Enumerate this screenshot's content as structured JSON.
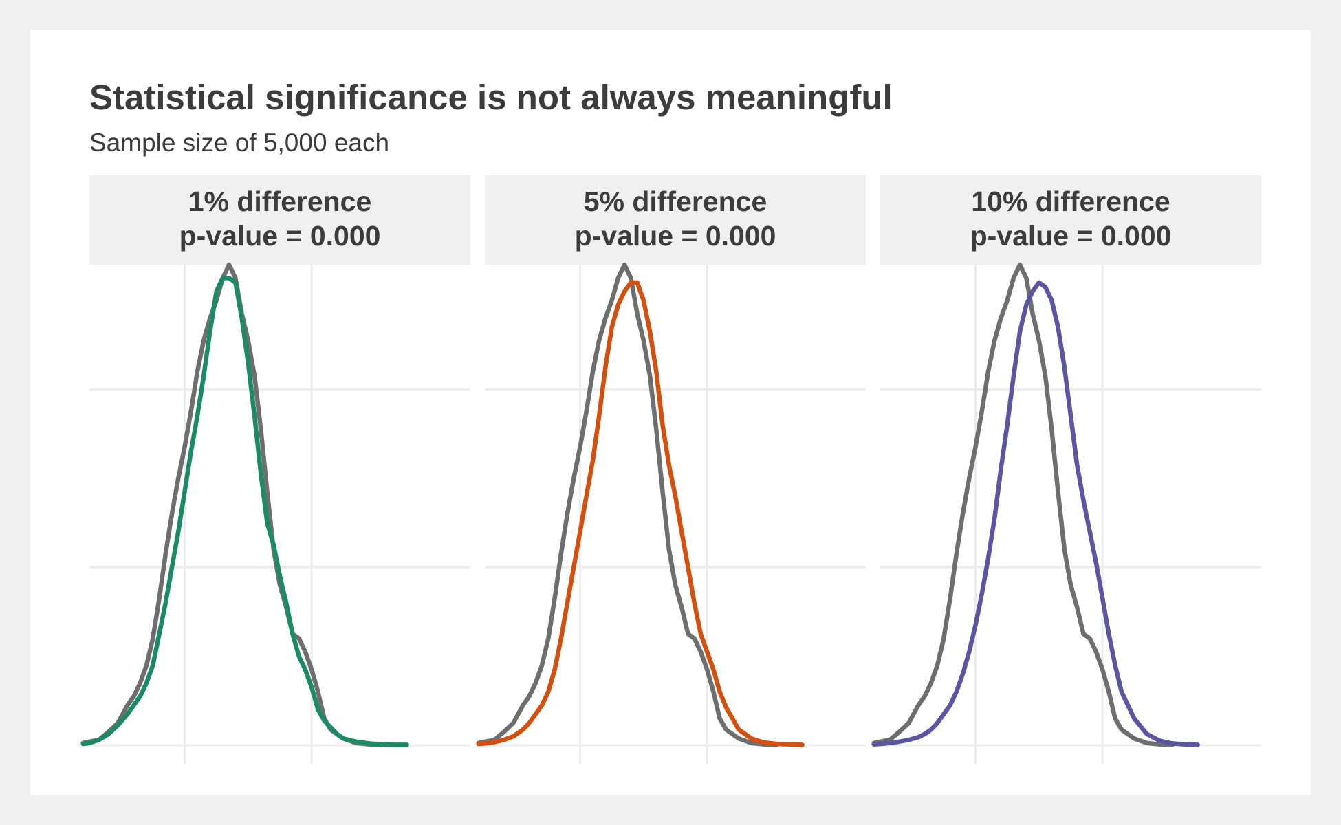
{
  "chart_data": {
    "type": "line",
    "title": "Statistical significance is not always meaningful",
    "subtitle": "Sample size of 5,000 each",
    "xlabel": "",
    "ylabel": "",
    "grid": true,
    "legend": "none",
    "xlim": [
      0,
      12
    ],
    "ylim": [
      0,
      1.08
    ],
    "x_gridlines": [
      3,
      7
    ],
    "y_gridlines": [
      0,
      0.4,
      0.8
    ],
    "baseline_color": "#6e6e6e",
    "panels": [
      {
        "title": "1% difference",
        "subtitle": "p-value = 0.000",
        "color": "#1b8a68",
        "series": [
          {
            "x": [
              -0.2,
              0.0,
              0.3,
              0.6,
              0.9,
              1.2,
              1.4,
              1.6,
              1.8,
              2.0,
              2.2,
              2.4,
              2.6,
              2.8,
              3.0,
              3.2,
              3.4,
              3.6,
              3.8,
              4.0,
              4.2,
              4.4,
              4.6,
              4.8,
              5.0,
              5.2,
              5.4,
              5.6,
              5.8,
              6.0,
              6.2,
              6.4,
              6.6,
              6.8,
              7.0,
              7.2,
              7.4,
              7.6,
              7.8,
              8.0,
              8.4,
              8.8,
              9.2
            ],
            "y": [
              0.005,
              0.008,
              0.012,
              0.03,
              0.05,
              0.09,
              0.11,
              0.14,
              0.18,
              0.24,
              0.33,
              0.43,
              0.52,
              0.6,
              0.67,
              0.75,
              0.84,
              0.91,
              0.96,
              1.0,
              1.05,
              1.08,
              1.05,
              0.97,
              0.91,
              0.83,
              0.71,
              0.57,
              0.44,
              0.36,
              0.31,
              0.25,
              0.24,
              0.21,
              0.17,
              0.12,
              0.06,
              0.035,
              0.025,
              0.015,
              0.005,
              0.002,
              0.001
            ]
          },
          {
            "x": [
              -0.2,
              0.0,
              0.3,
              0.6,
              0.9,
              1.2,
              1.4,
              1.6,
              1.8,
              2.0,
              2.2,
              2.4,
              2.6,
              2.8,
              3.0,
              3.2,
              3.4,
              3.6,
              3.8,
              4.0,
              4.2,
              4.4,
              4.6,
              4.8,
              5.0,
              5.2,
              5.4,
              5.6,
              5.8,
              6.0,
              6.2,
              6.4,
              6.6,
              6.8,
              7.0,
              7.2,
              7.4,
              7.6,
              7.8,
              8.0,
              8.4,
              8.8,
              9.2,
              9.6,
              10.0
            ],
            "y": [
              0.003,
              0.005,
              0.012,
              0.025,
              0.045,
              0.07,
              0.09,
              0.11,
              0.14,
              0.18,
              0.25,
              0.32,
              0.4,
              0.48,
              0.57,
              0.66,
              0.74,
              0.83,
              0.93,
              1.02,
              1.05,
              1.05,
              1.04,
              0.96,
              0.86,
              0.74,
              0.61,
              0.5,
              0.45,
              0.38,
              0.32,
              0.25,
              0.2,
              0.17,
              0.13,
              0.08,
              0.055,
              0.04,
              0.025,
              0.015,
              0.008,
              0.004,
              0.002,
              0.001,
              0.001
            ]
          }
        ]
      },
      {
        "title": "5% difference",
        "subtitle": "p-value = 0.000",
        "color": "#d4500f",
        "series": [
          {
            "x": [
              -0.2,
              0.0,
              0.3,
              0.6,
              0.9,
              1.2,
              1.4,
              1.6,
              1.8,
              2.0,
              2.2,
              2.4,
              2.6,
              2.8,
              3.0,
              3.2,
              3.4,
              3.6,
              3.8,
              4.0,
              4.2,
              4.4,
              4.6,
              4.8,
              5.0,
              5.2,
              5.4,
              5.6,
              5.8,
              6.0,
              6.2,
              6.4,
              6.6,
              6.8,
              7.0,
              7.2,
              7.4,
              7.6,
              7.8,
              8.0,
              8.4,
              8.8,
              9.2
            ],
            "y": [
              0.005,
              0.008,
              0.012,
              0.03,
              0.05,
              0.09,
              0.11,
              0.14,
              0.18,
              0.24,
              0.33,
              0.43,
              0.52,
              0.6,
              0.67,
              0.75,
              0.84,
              0.91,
              0.96,
              1.0,
              1.05,
              1.08,
              1.05,
              0.97,
              0.91,
              0.83,
              0.71,
              0.57,
              0.44,
              0.36,
              0.31,
              0.25,
              0.24,
              0.21,
              0.17,
              0.12,
              0.06,
              0.035,
              0.025,
              0.015,
              0.005,
              0.002,
              0.001
            ]
          },
          {
            "x": [
              -0.2,
              0.0,
              0.3,
              0.6,
              0.9,
              1.2,
              1.4,
              1.6,
              1.8,
              2.0,
              2.2,
              2.4,
              2.6,
              2.8,
              3.0,
              3.2,
              3.4,
              3.6,
              3.8,
              4.0,
              4.2,
              4.4,
              4.6,
              4.8,
              5.0,
              5.2,
              5.4,
              5.6,
              5.8,
              6.0,
              6.2,
              6.4,
              6.6,
              6.8,
              7.0,
              7.2,
              7.4,
              7.6,
              7.8,
              8.0,
              8.4,
              8.8,
              9.2,
              9.6,
              10.0
            ],
            "y": [
              0.003,
              0.004,
              0.007,
              0.012,
              0.02,
              0.035,
              0.05,
              0.07,
              0.09,
              0.12,
              0.17,
              0.24,
              0.32,
              0.4,
              0.48,
              0.56,
              0.64,
              0.74,
              0.85,
              0.94,
              0.99,
              1.02,
              1.04,
              1.04,
              1.0,
              0.93,
              0.84,
              0.72,
              0.63,
              0.56,
              0.48,
              0.4,
              0.32,
              0.25,
              0.21,
              0.17,
              0.12,
              0.085,
              0.06,
              0.035,
              0.015,
              0.006,
              0.003,
              0.002,
              0.001
            ]
          }
        ]
      },
      {
        "title": "10% difference",
        "subtitle": "p-value = 0.000",
        "color": "#5c55a2",
        "series": [
          {
            "x": [
              -0.2,
              0.0,
              0.3,
              0.6,
              0.9,
              1.2,
              1.4,
              1.6,
              1.8,
              2.0,
              2.2,
              2.4,
              2.6,
              2.8,
              3.0,
              3.2,
              3.4,
              3.6,
              3.8,
              4.0,
              4.2,
              4.4,
              4.6,
              4.8,
              5.0,
              5.2,
              5.4,
              5.6,
              5.8,
              6.0,
              6.2,
              6.4,
              6.6,
              6.8,
              7.0,
              7.2,
              7.4,
              7.6,
              7.8,
              8.0,
              8.4,
              8.8,
              9.2
            ],
            "y": [
              0.005,
              0.008,
              0.012,
              0.03,
              0.05,
              0.09,
              0.11,
              0.14,
              0.18,
              0.24,
              0.33,
              0.43,
              0.52,
              0.6,
              0.67,
              0.75,
              0.84,
              0.91,
              0.96,
              1.0,
              1.05,
              1.08,
              1.05,
              0.97,
              0.91,
              0.83,
              0.71,
              0.57,
              0.44,
              0.36,
              0.31,
              0.25,
              0.24,
              0.21,
              0.17,
              0.12,
              0.06,
              0.035,
              0.025,
              0.015,
              0.005,
              0.002,
              0.001
            ]
          },
          {
            "x": [
              -0.2,
              0.0,
              0.3,
              0.6,
              0.9,
              1.2,
              1.4,
              1.6,
              1.8,
              2.0,
              2.2,
              2.4,
              2.6,
              2.8,
              3.0,
              3.2,
              3.4,
              3.6,
              3.8,
              4.0,
              4.2,
              4.4,
              4.6,
              4.8,
              5.0,
              5.2,
              5.4,
              5.6,
              5.8,
              6.0,
              6.2,
              6.4,
              6.6,
              6.8,
              7.0,
              7.2,
              7.4,
              7.6,
              7.8,
              8.0,
              8.4,
              8.8,
              9.2,
              9.6,
              10.0
            ],
            "y": [
              0.002,
              0.003,
              0.005,
              0.008,
              0.012,
              0.018,
              0.025,
              0.035,
              0.05,
              0.07,
              0.09,
              0.12,
              0.16,
              0.21,
              0.27,
              0.34,
              0.42,
              0.51,
              0.62,
              0.72,
              0.83,
              0.93,
              0.99,
              1.02,
              1.04,
              1.03,
              1.0,
              0.94,
              0.85,
              0.74,
              0.63,
              0.55,
              0.48,
              0.41,
              0.33,
              0.25,
              0.18,
              0.12,
              0.09,
              0.06,
              0.025,
              0.01,
              0.004,
              0.002,
              0.001
            ]
          }
        ]
      }
    ]
  }
}
